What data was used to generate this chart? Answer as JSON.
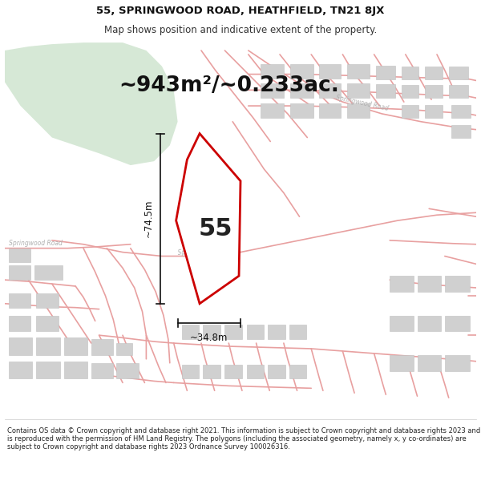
{
  "title_line1": "55, SPRINGWOOD ROAD, HEATHFIELD, TN21 8JX",
  "title_line2": "Map shows position and indicative extent of the property.",
  "area_text": "~943m²/~0.233ac.",
  "label_number": "55",
  "dim_width": "~34.8m",
  "dim_height": "~74.5m",
  "footer_text": "Contains OS data © Crown copyright and database right 2021. This information is subject to Crown copyright and database rights 2023 and is reproduced with the permission of HM Land Registry. The polygons (including the associated geometry, namely x, y co-ordinates) are subject to Crown copyright and database rights 2023 Ordnance Survey 100026316.",
  "bg_color": "#ffffff",
  "map_bg": "#f5f5f5",
  "green_patch_color": "#d6e8d6",
  "road_color": "#e8a0a0",
  "building_color": "#d0d0d0",
  "building_edge": "#c0c0c0",
  "plot_line_color": "#cc0000",
  "dim_line_color": "#111111",
  "title_fontsize": 9.5,
  "subtitle_fontsize": 8.5,
  "area_fontsize": 19,
  "number_fontsize": 22,
  "dim_fontsize": 8.5,
  "footer_fontsize": 6.0,
  "road_label_color": "#b0b0b0",
  "road_label_fontsize": 5.5
}
